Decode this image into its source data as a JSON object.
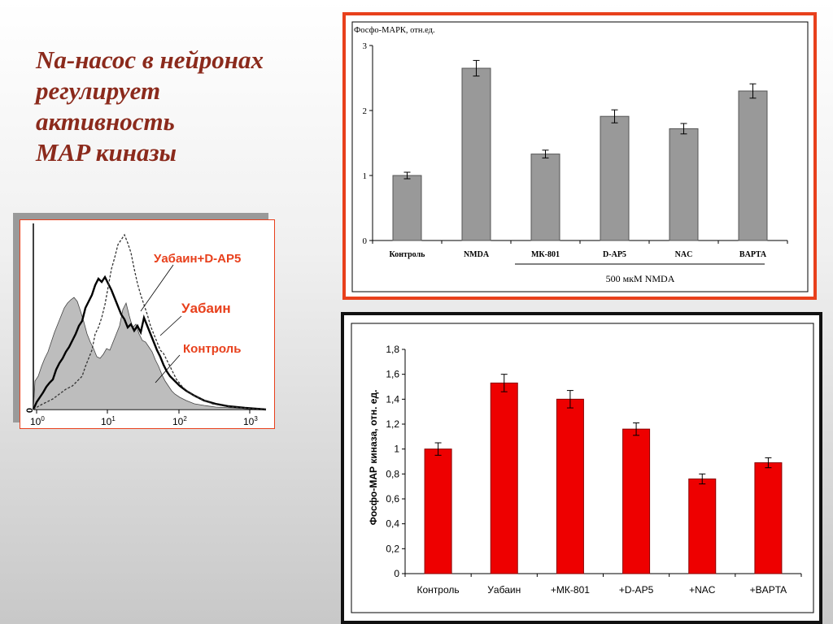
{
  "title": {
    "lines": [
      "Na-насос в нейронах",
      "регулирует",
      "активность",
      "MAP киназы"
    ]
  },
  "colors": {
    "title": "#8B2A1C",
    "frame_accent": "#E8401C",
    "histogram_label": "#E8401C",
    "top_bar": "#999999",
    "bottom_bar": "#EE0000"
  },
  "histogram": {
    "legend": [
      "Уабаин+D-AP5",
      "Уабаин",
      "Контроль"
    ],
    "y_zero_label": "0",
    "x_ticks": [
      {
        "base": "10",
        "exp": "0"
      },
      {
        "base": "10",
        "exp": "1"
      },
      {
        "base": "10",
        "exp": "2"
      },
      {
        "base": "10",
        "exp": "3"
      }
    ]
  },
  "chart_data": [
    {
      "type": "bar",
      "ylabel": "Фосфо-МАРК, отн.ед.",
      "categories": [
        "Контроль",
        "NMDA",
        "МК-801",
        "D-AP5",
        "NAC",
        "BAPTA"
      ],
      "values": [
        1.0,
        2.65,
        1.33,
        1.91,
        1.72,
        2.3
      ],
      "errors": [
        0.05,
        0.12,
        0.06,
        0.1,
        0.08,
        0.11
      ],
      "ylim": [
        0,
        3
      ],
      "yticks": [
        "0",
        "1",
        "2",
        "3"
      ],
      "group_label": "500 мкМ NMDA",
      "grid": false
    },
    {
      "type": "bar",
      "ylabel": "Фосфо-МАР киназа, отн. ед.",
      "categories": [
        "Контроль",
        "Уабаин",
        "+МК-801",
        "+D-AP5",
        "+NAC",
        "+BAPTA"
      ],
      "values": [
        1.0,
        1.53,
        1.4,
        1.16,
        0.76,
        0.89
      ],
      "errors": [
        0.05,
        0.07,
        0.07,
        0.05,
        0.04,
        0.04
      ],
      "ylim": [
        0,
        1.8
      ],
      "yticks": [
        "0",
        "0,2",
        "0,4",
        "0,6",
        "0,8",
        "1",
        "1,2",
        "1,4",
        "1,6",
        "1,8"
      ],
      "grid": false
    }
  ]
}
